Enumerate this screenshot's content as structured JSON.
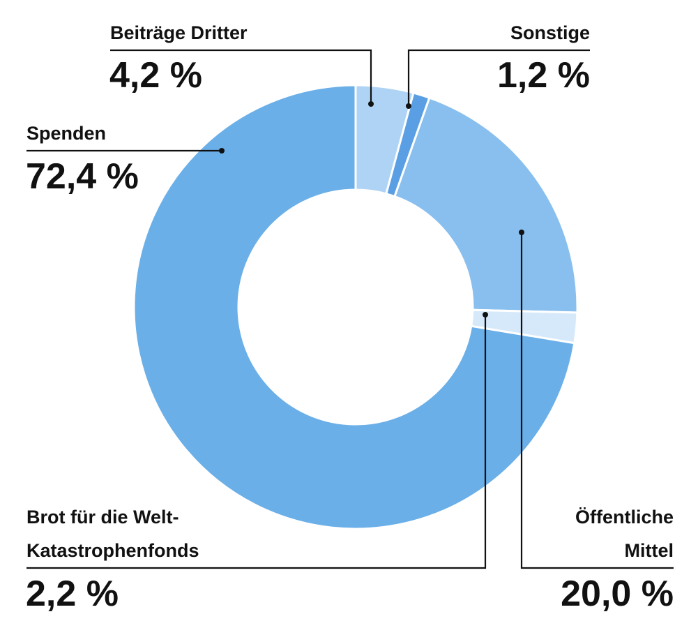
{
  "chart_data": {
    "type": "pie",
    "donut": true,
    "legend": "none",
    "slices": [
      {
        "label": "Beiträge Dritter",
        "value": 4.2,
        "value_label": "4,2 %",
        "color": "#aed3f5"
      },
      {
        "label": "Sonstige",
        "value": 1.2,
        "value_label": "1,2 %",
        "color": "#5a9fe3"
      },
      {
        "label": "Öffentliche Mittel",
        "label_lines": [
          "Öffentliche",
          "Mittel"
        ],
        "value": 20.0,
        "value_label": "20,0 %",
        "color": "#88bfee"
      },
      {
        "label": "Brot für die Welt-Katastrophenfonds",
        "label_lines": [
          "Brot für die Welt-",
          "Katastrophenfonds"
        ],
        "value": 2.2,
        "value_label": "2,2 %",
        "color": "#d6e9fb"
      },
      {
        "label": "Spenden",
        "value": 72.4,
        "value_label": "72,4 %",
        "color": "#6aafe8"
      }
    ]
  }
}
